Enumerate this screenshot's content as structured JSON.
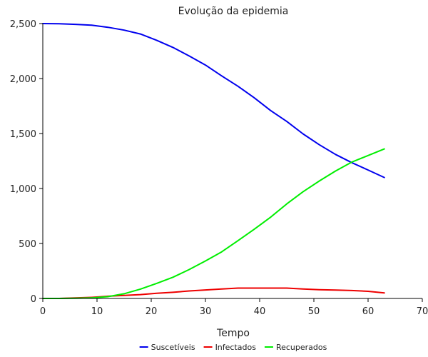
{
  "chart_data": {
    "type": "line",
    "title": "Evolução da epidemia",
    "xlabel": "Tempo",
    "ylabel": "",
    "xlim": [
      0,
      70
    ],
    "ylim": [
      0,
      2500
    ],
    "x_ticks": [
      0,
      10,
      20,
      30,
      40,
      50,
      60,
      70
    ],
    "y_ticks": [
      0,
      500,
      1000,
      1500,
      2000,
      2500
    ],
    "x_tick_labels": [
      "0",
      "10",
      "20",
      "30",
      "40",
      "50",
      "60",
      "70"
    ],
    "y_tick_labels": [
      "0",
      "500",
      "1,000",
      "1,500",
      "2,000",
      "2,500"
    ],
    "grid": false,
    "legend": "bottom",
    "x": [
      0,
      3,
      6,
      9,
      12,
      15,
      18,
      21,
      24,
      27,
      30,
      33,
      36,
      39,
      42,
      45,
      48,
      51,
      54,
      57,
      60,
      63
    ],
    "series": [
      {
        "name": "Suscetíveis",
        "color": "#0000ee",
        "values": [
          2500,
          2499,
          2493,
          2485,
          2466,
          2440,
          2405,
          2348,
          2283,
          2205,
          2123,
          2024,
          1930,
          1825,
          1710,
          1610,
          1497,
          1398,
          1310,
          1235,
          1168,
          1100
        ]
      },
      {
        "name": "Infectados",
        "color": "#ee0000",
        "values": [
          0,
          0,
          5,
          10,
          20,
          27,
          35,
          47,
          56,
          68,
          77,
          86,
          94,
          94,
          94,
          94,
          86,
          80,
          76,
          72,
          65,
          50
        ]
      },
      {
        "name": "Recuperados",
        "color": "#00ee00",
        "values": [
          0,
          0,
          2,
          5,
          16,
          43,
          85,
          137,
          193,
          263,
          341,
          424,
          525,
          629,
          738,
          860,
          970,
          1068,
          1159,
          1240,
          1300,
          1360
        ]
      }
    ]
  }
}
